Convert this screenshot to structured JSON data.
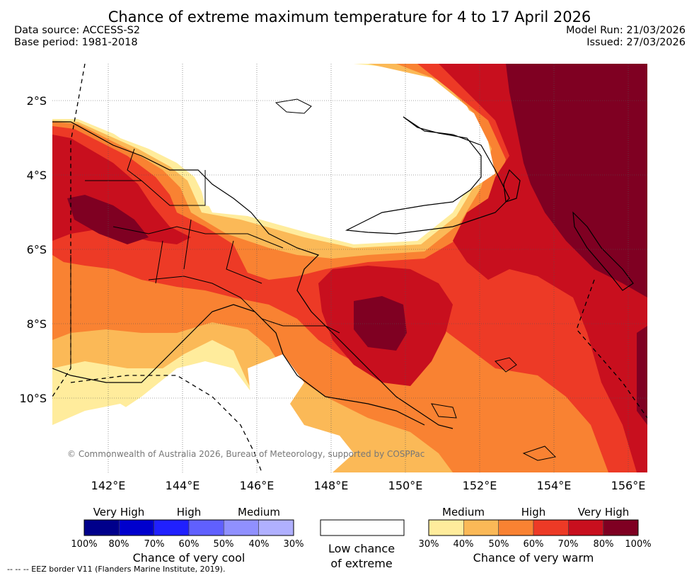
{
  "title": "Chance of extreme maximum temperature for 4 to 17 April 2026",
  "data_source": "Data source: ACCESS-S2",
  "base_period": "Base period: 1981-2018",
  "model_run": "Model Run: 21/03/2026",
  "issued": "Issued: 27/03/2026",
  "copyright": "© Commonwealth of Australia 2026, Bureau of Meteorology, supported by COSPPac",
  "lat_ticks": [
    "2°S",
    "4°S",
    "6°S",
    "8°S",
    "10°S"
  ],
  "lon_ticks": [
    "142°E",
    "144°E",
    "146°E",
    "148°E",
    "150°E",
    "152°E",
    "154°E",
    "156°E"
  ],
  "colors": {
    "cool": [
      "#00008b",
      "#0000cd",
      "#2020ff",
      "#6060ff",
      "#9090ff",
      "#b0b0ff"
    ],
    "warm": [
      "#ffec9c",
      "#fbb957",
      "#f98232",
      "#ed3a26",
      "#c80f1e",
      "#7f0022"
    ]
  },
  "legend": {
    "cool_categories": [
      "Very High",
      "High",
      "Medium"
    ],
    "cool_percents": [
      "100%",
      "80%",
      "70%",
      "60%",
      "50%",
      "40%",
      "30%"
    ],
    "cool_title": "Chance of very cool",
    "low_line1": "Low chance",
    "low_line2": "of extreme",
    "warm_categories": [
      "Medium",
      "High",
      "Very High"
    ],
    "warm_percents": [
      "30%",
      "40%",
      "50%",
      "60%",
      "70%",
      "80%",
      "100%"
    ],
    "warm_title": "Chance of very warm"
  },
  "eez_note": "--  --  -- EEZ border V11 (Flanders Marine Institute, 2019)."
}
